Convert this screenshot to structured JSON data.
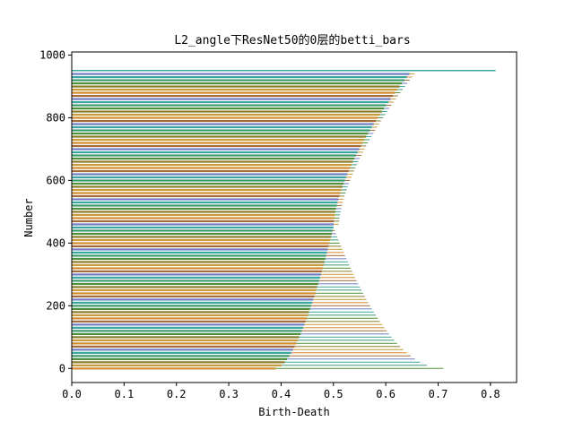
{
  "chart_data": {
    "type": "bar",
    "orientation": "horizontal",
    "title": "L2_angle下ResNet50的0层的betti_bars",
    "xlabel": "Birth-Death",
    "ylabel": "Number",
    "xlim": [
      0,
      0.85
    ],
    "ylim": [
      -45,
      1010
    ],
    "xticks": [
      "0.0",
      "0.1",
      "0.2",
      "0.3",
      "0.4",
      "0.5",
      "0.6",
      "0.7",
      "0.8"
    ],
    "yticks": [
      "0",
      "200",
      "400",
      "600",
      "800",
      "1000"
    ],
    "palette": [
      "#d08c2e",
      "#c89a3a",
      "#8a7d2b",
      "#4f8f3a",
      "#3d9970",
      "#3aa6a0",
      "#6d7fc0",
      "#a66a3a"
    ],
    "bars": {
      "count": 950,
      "death_start": 0.39,
      "death_end": 0.71,
      "death_curve_knee_index": 450,
      "death_at_knee": 0.5,
      "birth_at_start": 0.39,
      "birth_at_knee": 0.5,
      "birth_at_end": 0.65,
      "note_series": "each index i draws a bar from birth to death"
    },
    "grid": false,
    "legend": "none"
  }
}
